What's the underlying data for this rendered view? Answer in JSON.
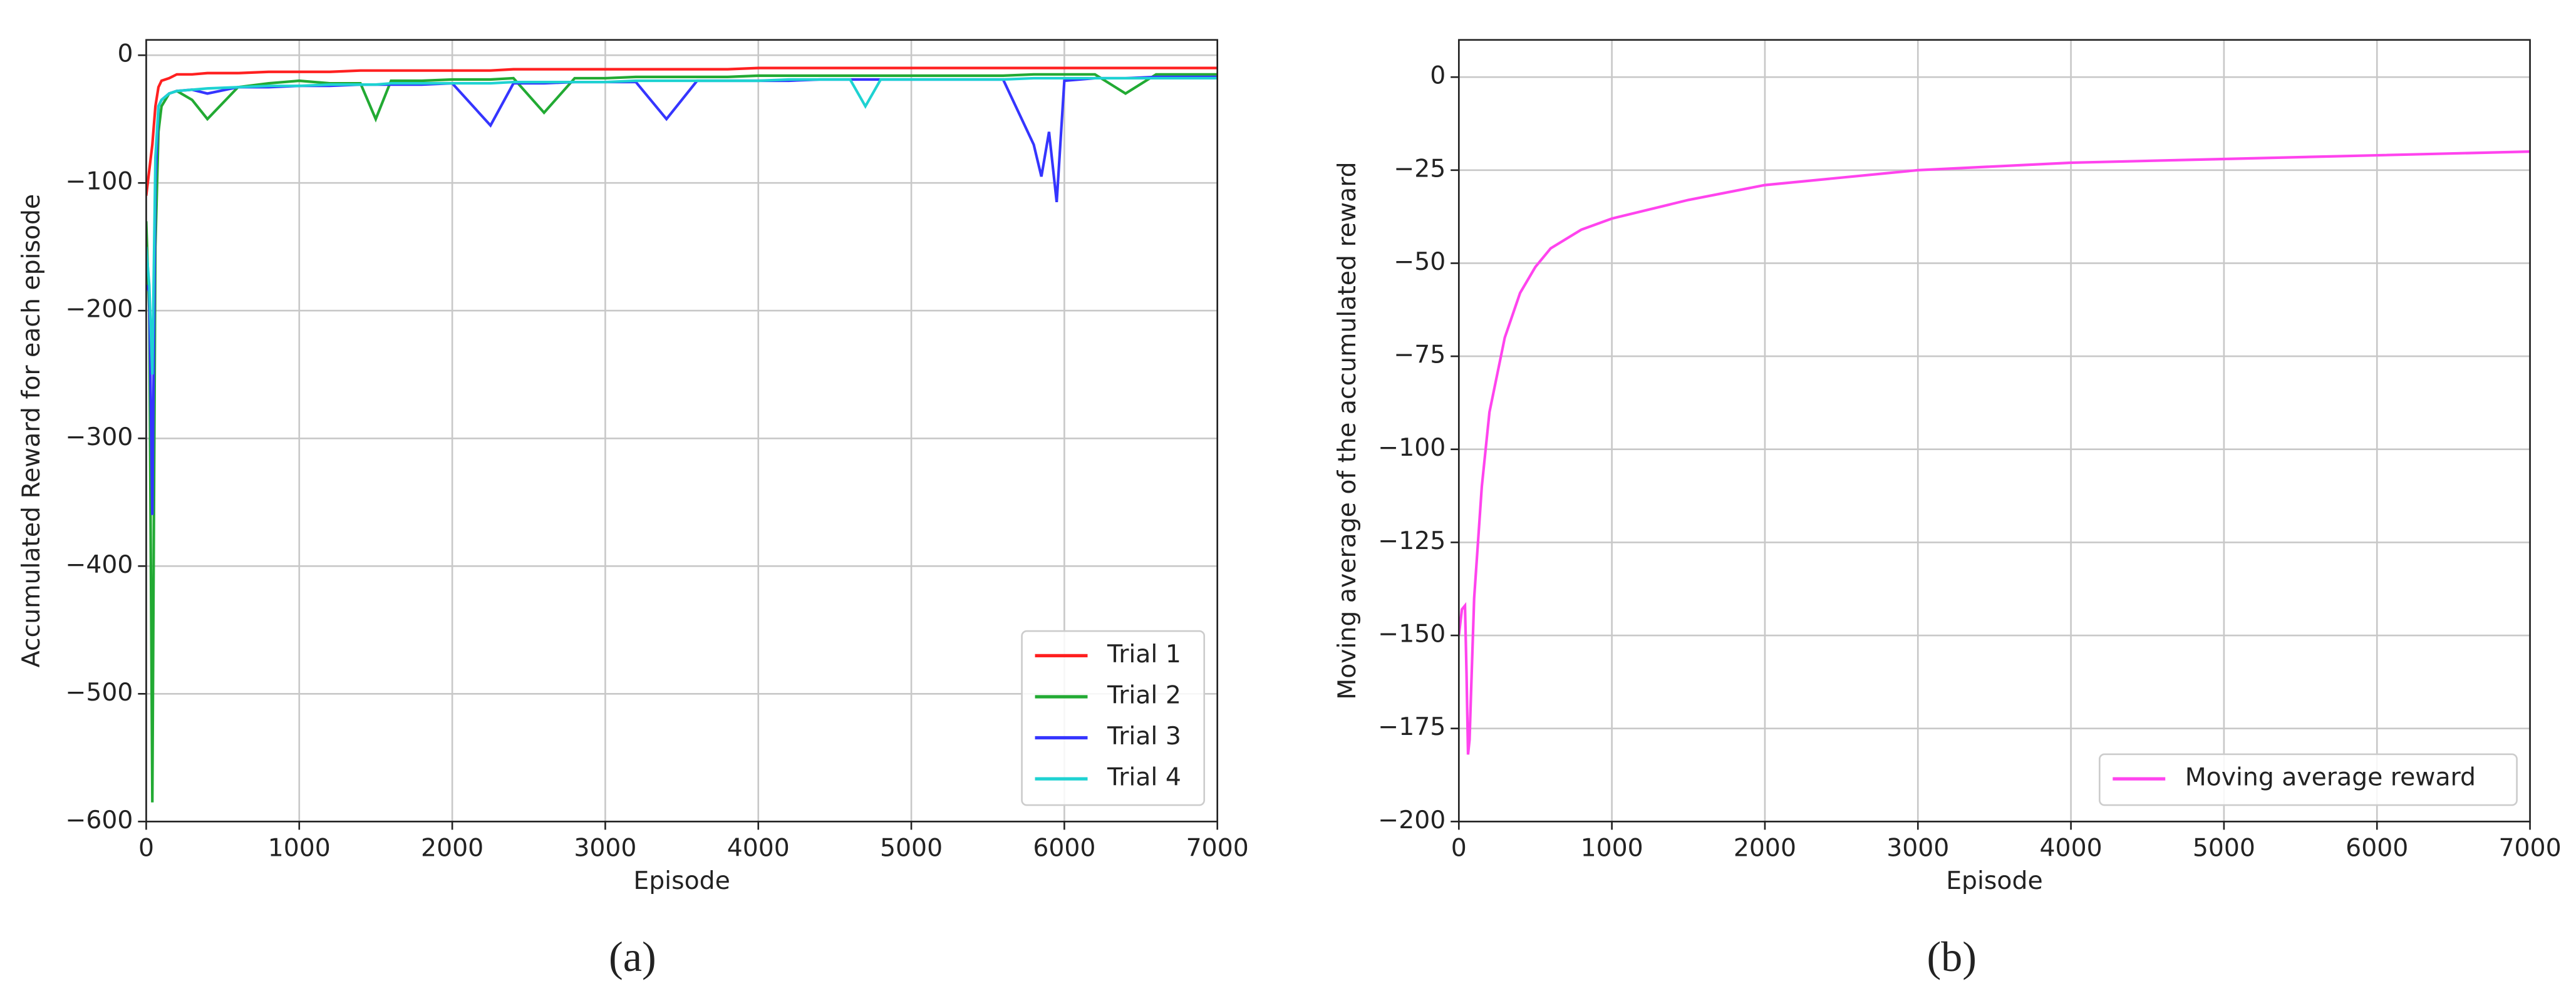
{
  "chart_data": [
    {
      "type": "line",
      "caption": "(a)",
      "x_label": "Episode",
      "y_label": "Accumulated Reward for each episode",
      "x": [
        0,
        20,
        40,
        60,
        80,
        100,
        150,
        200,
        300,
        400,
        600,
        800,
        1000,
        1200,
        1400,
        1500,
        1600,
        1800,
        2000,
        2250,
        2400,
        2600,
        2800,
        3000,
        3200,
        3400,
        3600,
        3800,
        4000,
        4200,
        4400,
        4600,
        4700,
        4800,
        5000,
        5200,
        5400,
        5600,
        5800,
        5850,
        5900,
        5950,
        6000,
        6200,
        6400,
        6600,
        6800,
        7000
      ],
      "series": [
        {
          "name": "Trial 1",
          "color": "#ff2020",
          "values": [
            -110,
            -90,
            -70,
            -40,
            -25,
            -20,
            -18,
            -15,
            -15,
            -14,
            -14,
            -13,
            -13,
            -13,
            -12,
            -12,
            -12,
            -12,
            -12,
            -12,
            -11,
            -11,
            -11,
            -11,
            -11,
            -11,
            -11,
            -11,
            -10,
            -10,
            -10,
            -10,
            -10,
            -10,
            -10,
            -10,
            -10,
            -10,
            -10,
            -10,
            -10,
            -10,
            -10,
            -10,
            -10,
            -10,
            -10,
            -10
          ]
        },
        {
          "name": "Trial 2",
          "color": "#22aa33",
          "values": [
            -130,
            -200,
            -585,
            -150,
            -60,
            -40,
            -30,
            -28,
            -35,
            -50,
            -25,
            -22,
            -20,
            -22,
            -22,
            -50,
            -20,
            -20,
            -19,
            -19,
            -18,
            -45,
            -18,
            -18,
            -17,
            -17,
            -17,
            -17,
            -16,
            -16,
            -16,
            -16,
            -16,
            -16,
            -16,
            -16,
            -16,
            -16,
            -15,
            -15,
            -15,
            -15,
            -15,
            -15,
            -30,
            -15,
            -15,
            -15
          ]
        },
        {
          "name": "Trial 3",
          "color": "#3535ff",
          "values": [
            -180,
            -185,
            -360,
            -100,
            -40,
            -35,
            -30,
            -28,
            -27,
            -30,
            -25,
            -25,
            -24,
            -24,
            -23,
            -23,
            -23,
            -23,
            -22,
            -55,
            -22,
            -22,
            -21,
            -21,
            -21,
            -50,
            -20,
            -20,
            -20,
            -20,
            -19,
            -19,
            -19,
            -19,
            -19,
            -19,
            -19,
            -19,
            -70,
            -95,
            -60,
            -115,
            -20,
            -18,
            -18,
            -17,
            -17,
            -17
          ]
        },
        {
          "name": "Trial 4",
          "color": "#1ed2d2",
          "values": [
            -150,
            -180,
            -250,
            -80,
            -40,
            -35,
            -30,
            -28,
            -27,
            -26,
            -25,
            -24,
            -24,
            -23,
            -23,
            -23,
            -22,
            -22,
            -22,
            -22,
            -21,
            -21,
            -21,
            -21,
            -20,
            -20,
            -20,
            -20,
            -20,
            -19,
            -19,
            -19,
            -40,
            -19,
            -19,
            -19,
            -19,
            -19,
            -18,
            -18,
            -18,
            -18,
            -18,
            -18,
            -18,
            -18,
            -18,
            -18
          ]
        }
      ],
      "xlim": [
        0,
        7000
      ],
      "ylim": [
        -600,
        12
      ],
      "xticks": [
        0,
        1000,
        2000,
        3000,
        4000,
        5000,
        6000,
        7000
      ],
      "yticks": [
        {
          "value": -600,
          "label": "−600"
        },
        {
          "value": -500,
          "label": "−500"
        },
        {
          "value": -400,
          "label": "−400"
        },
        {
          "value": -300,
          "label": "−300"
        },
        {
          "value": -200,
          "label": "−200"
        },
        {
          "value": -100,
          "label": "−100"
        },
        0
      ],
      "grid": true,
      "legend": "lower right"
    },
    {
      "type": "line",
      "caption": "(b)",
      "x_label": "Episode",
      "y_label": "Moving average of the accumulated reward",
      "x": [
        0,
        20,
        40,
        50,
        60,
        70,
        80,
        100,
        150,
        200,
        300,
        400,
        500,
        600,
        800,
        1000,
        1500,
        2000,
        3000,
        4000,
        5000,
        6000,
        7000
      ],
      "series": [
        {
          "name": "Moving average reward",
          "color": "#ff44ee",
          "values": [
            -150,
            -143,
            -142,
            -160,
            -182,
            -178,
            -165,
            -140,
            -110,
            -90,
            -70,
            -58,
            -51,
            -46,
            -41,
            -38,
            -33,
            -29,
            -25,
            -23,
            -22,
            -21,
            -20
          ]
        }
      ],
      "xlim": [
        0,
        7000
      ],
      "ylim": [
        -200,
        10
      ],
      "xticks": [
        0,
        1000,
        2000,
        3000,
        4000,
        5000,
        6000,
        7000
      ],
      "yticks": [
        {
          "value": -200,
          "label": "−200"
        },
        {
          "value": -175,
          "label": "−175"
        },
        {
          "value": -150,
          "label": "−150"
        },
        {
          "value": -125,
          "label": "−125"
        },
        {
          "value": -100,
          "label": "−100"
        },
        {
          "value": -75,
          "label": "−75"
        },
        {
          "value": -50,
          "label": "−50"
        },
        {
          "value": -25,
          "label": "−25"
        },
        0
      ],
      "grid": true,
      "legend": "lower right"
    }
  ]
}
